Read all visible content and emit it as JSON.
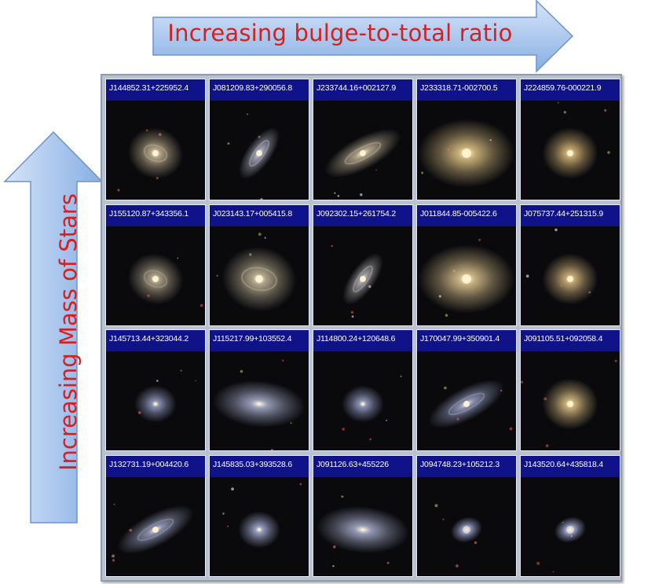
{
  "header": {
    "horizontal_label": "Increasing bulge-to-total ratio",
    "vertical_label": "Increasing Mass of Stars"
  },
  "colors": {
    "arrow_fill_light": "#cfe0f7",
    "arrow_fill_dark": "#7da6e0",
    "label_text": "#d42020",
    "cell_label_bg": "#10128a"
  },
  "grid": {
    "rows": [
      {
        "cells": [
          {
            "id": "J144852.31+225952.4",
            "type": "spiral-face",
            "color": "#b7a88a"
          },
          {
            "id": "J081209.83+290056.8",
            "type": "spiral-edge",
            "color": "#a6a8b8"
          },
          {
            "id": "J233744.16+002127.9",
            "type": "spiral-tilt",
            "color": "#b4a78e"
          },
          {
            "id": "J233318.71-002700.5",
            "type": "elliptical-large",
            "color": "#cdb47a"
          },
          {
            "id": "J224859.76-000221.9",
            "type": "elliptical",
            "color": "#c6a96e"
          }
        ]
      },
      {
        "cells": [
          {
            "id": "J155120.87+343356.1",
            "type": "spiral-face",
            "color": "#a89d86"
          },
          {
            "id": "J023143.17+005415.8",
            "type": "spiral-face-large",
            "color": "#b2a88e"
          },
          {
            "id": "J092302.15+261754.2",
            "type": "spiral-edge",
            "color": "#a7a4a6"
          },
          {
            "id": "J011844.85-005422.6",
            "type": "elliptical-large",
            "color": "#cbb484"
          },
          {
            "id": "J075737.44+251315.9",
            "type": "elliptical",
            "color": "#c4a874"
          }
        ]
      },
      {
        "cells": [
          {
            "id": "J145713.44+323044.2",
            "type": "faint-blue",
            "color": "#8c93b6"
          },
          {
            "id": "J115217.99+103552.4",
            "type": "irregular-wide",
            "color": "#9aa0bc"
          },
          {
            "id": "J114800.24+120648.6",
            "type": "faint-blue",
            "color": "#8e97ba"
          },
          {
            "id": "J170047.99+350901.4",
            "type": "spiral-tilt",
            "color": "#8f96b6"
          },
          {
            "id": "J091105.51+092058.4",
            "type": "elliptical",
            "color": "#cbb17a"
          }
        ]
      },
      {
        "cells": [
          {
            "id": "J132731.19+004420.6",
            "type": "spiral-tilt",
            "color": "#9096b2"
          },
          {
            "id": "J145835.03+393528.6",
            "type": "faint-blue",
            "color": "#9aa2c6"
          },
          {
            "id": "J091126.63+455226",
            "type": "irregular-wide",
            "color": "#9aa0bc"
          },
          {
            "id": "J094748.23+105212.3",
            "type": "compact-blue",
            "color": "#aab2e0"
          },
          {
            "id": "J143520.64+435818.4",
            "type": "compact-blue",
            "color": "#b8c0ee"
          }
        ]
      }
    ]
  }
}
